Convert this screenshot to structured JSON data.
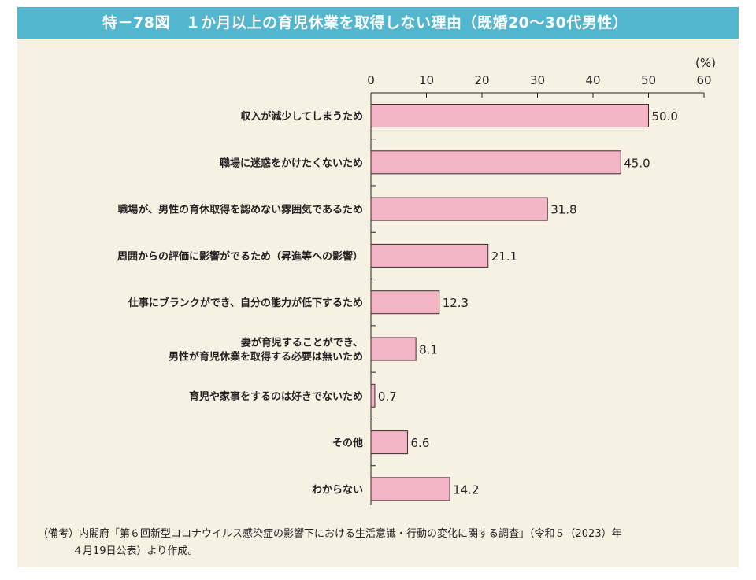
{
  "header": {
    "title": "特－78図　１か月以上の育児休業を取得しない理由（既婚20～30代男性）"
  },
  "chart_data": {
    "type": "bar",
    "orientation": "horizontal",
    "unit_label": "(%)",
    "xlim": [
      0,
      60
    ],
    "ticks": [
      0,
      10,
      20,
      30,
      40,
      50,
      60
    ],
    "categories": [
      [
        "収入が減少してしまうため"
      ],
      [
        "職場に迷惑をかけたくないため"
      ],
      [
        "職場が、男性の育休取得を認めない雰囲気であるため"
      ],
      [
        "周囲からの評価に影響がでるため（昇進等への影響）"
      ],
      [
        "仕事にブランクができ、自分の能力が低下するため"
      ],
      [
        "妻が育児することができ、",
        "男性が育児休業を取得する必要は無いため"
      ],
      [
        "育児や家事をするのは好きでないため"
      ],
      [
        "その他"
      ],
      [
        "わからない"
      ]
    ],
    "values": [
      50.0,
      45.0,
      31.8,
      21.1,
      12.3,
      8.1,
      0.7,
      6.6,
      14.2
    ],
    "value_labels": [
      "50.0",
      "45.0",
      "31.8",
      "21.1",
      "12.3",
      "8.1",
      "0.7",
      "6.6",
      "14.2"
    ],
    "bar_color": "#f4b6c7",
    "bar_stroke": "#3d2b2f"
  },
  "footnote": {
    "line1": "（備考）内閣府「第６回新型コロナウイルス感染症の影響下における生活意識・行動の変化に関する調査」（令和５（2023）年",
    "line2": "４月19日公表）より作成。"
  },
  "colors": {
    "header_bg": "#52b6cf",
    "panel_bg": "#f6f1e3"
  }
}
